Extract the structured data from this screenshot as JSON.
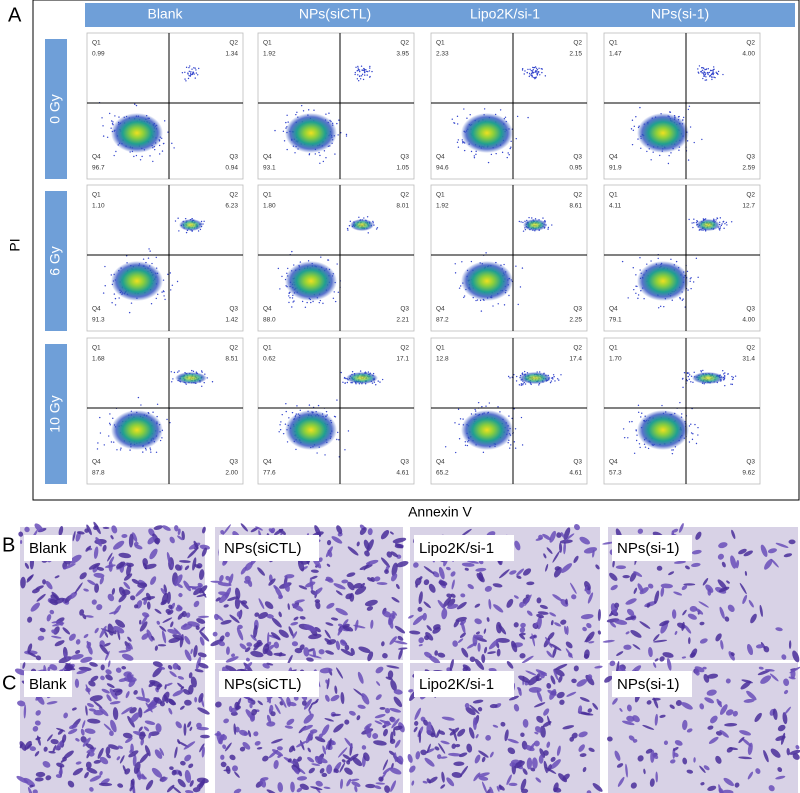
{
  "panel_a": {
    "label": "A",
    "y_axis_label": "PI",
    "x_axis_label": "Annexin V",
    "columns": [
      "Blank",
      "NPs(siCTL)",
      "Lipo2K/si-1",
      "NPs(si-1)"
    ],
    "rows": [
      {
        "label": "0 Gy",
        "plots": [
          {
            "quadrants": [
              {
                "name": "Q1",
                "value": "0.99"
              },
              {
                "name": "Q2",
                "value": "1.34"
              },
              {
                "name": "Q3",
                "value": "0.94"
              },
              {
                "name": "Q4",
                "value": "96.7"
              }
            ]
          },
          {
            "quadrants": [
              {
                "name": "Q1",
                "value": "1.92"
              },
              {
                "name": "Q2",
                "value": "3.95"
              },
              {
                "name": "Q3",
                "value": "1.05"
              },
              {
                "name": "Q4",
                "value": "93.1"
              }
            ]
          },
          {
            "quadrants": [
              {
                "name": "Q1",
                "value": "2.33"
              },
              {
                "name": "Q2",
                "value": "2.15"
              },
              {
                "name": "Q3",
                "value": "0.95"
              },
              {
                "name": "Q4",
                "value": "94.6"
              }
            ]
          },
          {
            "quadrants": [
              {
                "name": "Q1",
                "value": "1.47"
              },
              {
                "name": "Q2",
                "value": "4.00"
              },
              {
                "name": "Q3",
                "value": "2.59"
              },
              {
                "name": "Q4",
                "value": "91.9"
              }
            ]
          }
        ]
      },
      {
        "label": "6 Gy",
        "plots": [
          {
            "quadrants": [
              {
                "name": "Q1",
                "value": "1.10"
              },
              {
                "name": "Q2",
                "value": "6.23"
              },
              {
                "name": "Q3",
                "value": "1.42"
              },
              {
                "name": "Q4",
                "value": "91.3"
              }
            ]
          },
          {
            "quadrants": [
              {
                "name": "Q1",
                "value": "1.80"
              },
              {
                "name": "Q2",
                "value": "8.01"
              },
              {
                "name": "Q3",
                "value": "2.21"
              },
              {
                "name": "Q4",
                "value": "88.0"
              }
            ]
          },
          {
            "quadrants": [
              {
                "name": "Q1",
                "value": "1.92"
              },
              {
                "name": "Q2",
                "value": "8.61"
              },
              {
                "name": "Q3",
                "value": "2.25"
              },
              {
                "name": "Q4",
                "value": "87.2"
              }
            ]
          },
          {
            "quadrants": [
              {
                "name": "Q1",
                "value": "4.11"
              },
              {
                "name": "Q2",
                "value": "12.7"
              },
              {
                "name": "Q3",
                "value": "4.00"
              },
              {
                "name": "Q4",
                "value": "79.1"
              }
            ]
          }
        ]
      },
      {
        "label": "10 Gy",
        "plots": [
          {
            "quadrants": [
              {
                "name": "Q1",
                "value": "1.68"
              },
              {
                "name": "Q2",
                "value": "8.51"
              },
              {
                "name": "Q3",
                "value": "2.00"
              },
              {
                "name": "Q4",
                "value": "87.8"
              }
            ]
          },
          {
            "quadrants": [
              {
                "name": "Q1",
                "value": "0.62"
              },
              {
                "name": "Q2",
                "value": "17.1"
              },
              {
                "name": "Q3",
                "value": "4.61"
              },
              {
                "name": "Q4",
                "value": "77.6"
              }
            ]
          },
          {
            "quadrants": [
              {
                "name": "Q1",
                "value": "12.8"
              },
              {
                "name": "Q2",
                "value": "17.4"
              },
              {
                "name": "Q3",
                "value": "4.61"
              },
              {
                "name": "Q4",
                "value": "65.2"
              }
            ]
          },
          {
            "quadrants": [
              {
                "name": "Q1",
                "value": "1.70"
              },
              {
                "name": "Q2",
                "value": "31.4"
              },
              {
                "name": "Q3",
                "value": "9.62"
              },
              {
                "name": "Q4",
                "value": "57.3"
              }
            ]
          }
        ]
      }
    ]
  },
  "panel_b": {
    "label": "B",
    "images": [
      "Blank",
      "NPs(siCTL)",
      "Lipo2K/si-1",
      "NPs(si-1)"
    ]
  },
  "panel_c": {
    "label": "C",
    "images": [
      "Blank",
      "NPs(siCTL)",
      "Lipo2K/si-1",
      "NPs(si-1)"
    ]
  }
}
